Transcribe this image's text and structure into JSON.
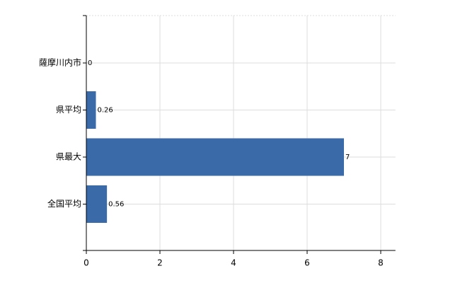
{
  "chart_data": {
    "type": "bar",
    "orientation": "horizontal",
    "categories": [
      "薩摩川内市",
      "県平均",
      "県最大",
      "全国平均"
    ],
    "values": [
      0,
      0.26,
      7,
      0.56
    ],
    "color": "#3a6aa8",
    "xlim": [
      0,
      8.4
    ],
    "xticks": [
      0,
      2,
      4,
      6,
      8
    ],
    "grid": true
  }
}
